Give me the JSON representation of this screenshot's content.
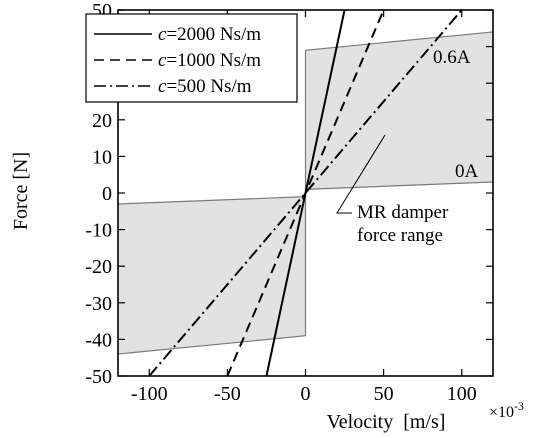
{
  "chart_data": {
    "type": "line",
    "xlabel": "Velocity  [m/s]",
    "xlabel_multiplier": "×10",
    "xlabel_exponent": "-3",
    "ylabel": "Force  [N]",
    "xlim": [
      -120,
      120
    ],
    "ylim": [
      -50,
      50
    ],
    "x_ticks": [
      -100,
      -50,
      0,
      50,
      100
    ],
    "x_tick_labels": [
      "-100",
      "-50",
      "0",
      "50",
      "100"
    ],
    "y_ticks": [
      50,
      40,
      30,
      20,
      10,
      0,
      -10,
      -20,
      -30,
      -40,
      -50
    ],
    "y_tick_labels": [
      "50",
      "40",
      "30",
      "20",
      "10",
      "0",
      "-10",
      "-20",
      "-30",
      "-40",
      "-50"
    ],
    "grid": false,
    "legend_position": "top-left",
    "series": [
      {
        "name": "c=2000 Ns/m",
        "legend_prefix": "c",
        "legend_suffix": "=2000 Ns/m",
        "style": "solid",
        "x": [
          -25,
          25
        ],
        "y": [
          -50,
          50
        ]
      },
      {
        "name": "c=1000 Ns/m",
        "legend_prefix": "c",
        "legend_suffix": "=1000 Ns/m",
        "style": "dashed",
        "x": [
          -50,
          50
        ],
        "y": [
          -50,
          50
        ]
      },
      {
        "name": "c=500 Ns/m",
        "legend_prefix": "c",
        "legend_suffix": "=500 Ns/m",
        "style": "dashdot",
        "x": [
          -100,
          100
        ],
        "y": [
          -50,
          50
        ]
      }
    ],
    "damper_limits": [
      {
        "label": "0.6A",
        "x": [
          -120,
          0,
          0,
          120
        ],
        "y": [
          -44,
          -39,
          39,
          44
        ]
      },
      {
        "label": "0A",
        "x": [
          -120,
          0,
          0,
          120
        ],
        "y": [
          -3,
          -1,
          1,
          3
        ]
      }
    ],
    "annotation": {
      "line1": "MR damper",
      "line2": "force range"
    },
    "colors": {
      "fill": "#e2e2e2",
      "line": "#000000",
      "boundary": "#7a7a7a"
    }
  }
}
